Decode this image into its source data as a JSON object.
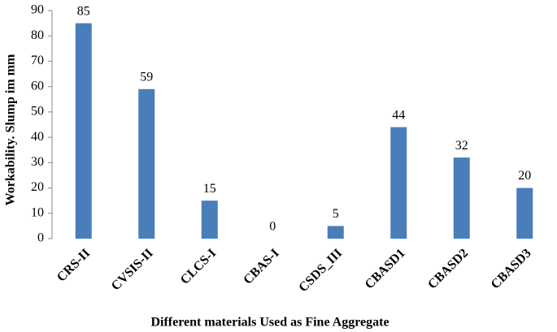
{
  "chart_data": {
    "type": "bar",
    "categories": [
      "CRS-II",
      "CVSIS-II",
      "CLCS-I",
      "CBAS-I",
      "CSDS_III",
      "CBASD1",
      "CBASD2",
      "CBASD3"
    ],
    "values": [
      85,
      59,
      15,
      0,
      5,
      44,
      32,
      20
    ],
    "color": "#4a7ebb",
    "ylim": [
      0,
      90
    ],
    "yticks": [
      0,
      10,
      20,
      30,
      40,
      50,
      60,
      70,
      80,
      90
    ],
    "y_label": "Workability. Slump im mm",
    "x_label": "Different materials Used as Fine Aggregate",
    "grid": false
  }
}
